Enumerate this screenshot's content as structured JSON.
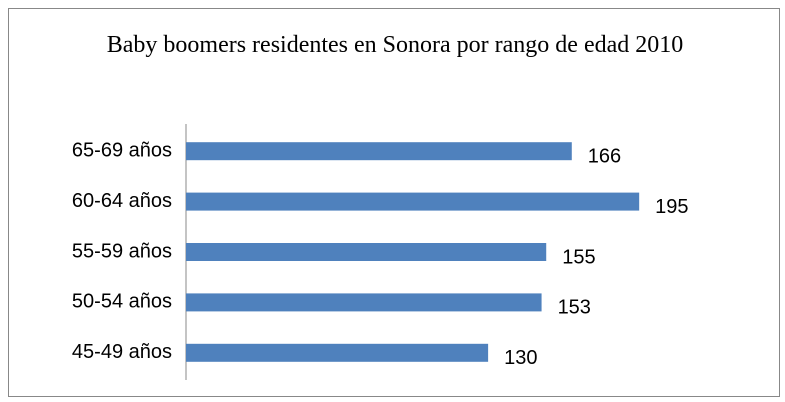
{
  "chart_data": {
    "type": "hbar",
    "title": "Baby boomers residentes en Sonora por rango de edad 2010",
    "categories": [
      "65-69 años",
      "60-64 años",
      "55-59 años",
      "50-54 años",
      "45-49 años"
    ],
    "values": [
      166,
      195,
      155,
      153,
      130
    ],
    "color": "#4f81bd",
    "xlim": [
      0,
      250
    ]
  }
}
